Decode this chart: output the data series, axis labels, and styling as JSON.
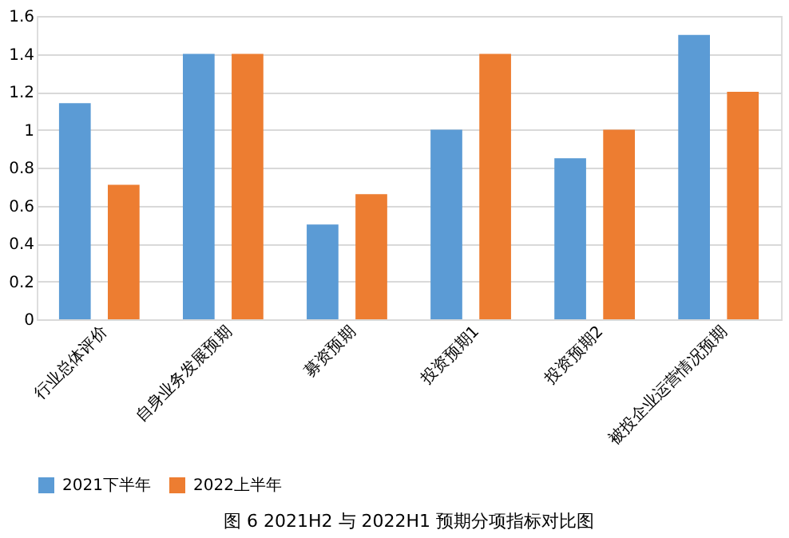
{
  "chart_data": {
    "type": "bar",
    "categories": [
      "行业总体评价",
      "自身业务发展预期",
      "募资预期",
      "投资预期1",
      "投资预期2",
      "被投企业运营情况预期"
    ],
    "series": [
      {
        "name": "2021下半年",
        "color": "#5b9bd5",
        "values": [
          1.14,
          1.4,
          0.5,
          1.0,
          0.85,
          1.5
        ]
      },
      {
        "name": "2022上半年",
        "color": "#ed7d31",
        "values": [
          0.71,
          1.4,
          0.66,
          1.4,
          1.0,
          1.2
        ]
      }
    ],
    "ylim": [
      0,
      1.6
    ],
    "yticks": [
      0,
      0.2,
      0.4,
      0.6,
      0.8,
      1,
      1.2,
      1.4,
      1.6
    ],
    "grid": "y",
    "legend": "bottom",
    "annotations": [
      "图 6   2021H2 与 2022H1 预期分项指标对比图"
    ]
  }
}
